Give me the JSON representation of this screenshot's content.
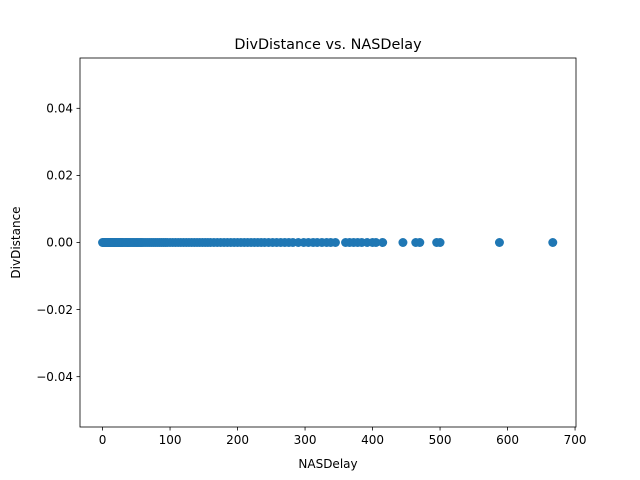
{
  "chart_data": {
    "type": "scatter",
    "title": "DivDistance vs. NASDelay",
    "xlabel": "NASDelay",
    "ylabel": "DivDistance",
    "xlim": [
      -33.4,
      701.4
    ],
    "ylim": [
      -0.055,
      0.055
    ],
    "xticks": [
      0,
      100,
      200,
      300,
      400,
      500,
      600,
      700
    ],
    "xtick_labels": [
      "0",
      "100",
      "200",
      "300",
      "400",
      "500",
      "600",
      "700"
    ],
    "yticks": [
      -0.04,
      -0.02,
      0.0,
      0.02,
      0.04
    ],
    "ytick_labels": [
      "−0.04",
      "−0.02",
      "0.00",
      "0.02",
      "0.04"
    ],
    "grid": false,
    "legend": "none",
    "point_color": "#1f77b4",
    "x": [
      0,
      1,
      2,
      3,
      4,
      5,
      6,
      7,
      8,
      9,
      10,
      11,
      12,
      13,
      14,
      15,
      16,
      17,
      18,
      19,
      20,
      21,
      22,
      23,
      24,
      25,
      26,
      27,
      28,
      29,
      30,
      32,
      34,
      36,
      38,
      40,
      42,
      44,
      46,
      48,
      50,
      52,
      54,
      56,
      58,
      60,
      63,
      66,
      69,
      72,
      75,
      78,
      81,
      84,
      87,
      90,
      93,
      96,
      100,
      104,
      108,
      112,
      116,
      120,
      124,
      128,
      132,
      136,
      140,
      144,
      148,
      152,
      156,
      160,
      165,
      170,
      175,
      180,
      185,
      190,
      195,
      200,
      205,
      210,
      215,
      220,
      225,
      230,
      235,
      240,
      246,
      252,
      258,
      264,
      270,
      276,
      282,
      290,
      298,
      305,
      312,
      318,
      325,
      332,
      338,
      345,
      360,
      366,
      372,
      378,
      384,
      392,
      400,
      405,
      415,
      445,
      464,
      470,
      495,
      500,
      588,
      667
    ],
    "y": [
      0,
      0,
      0,
      0,
      0,
      0,
      0,
      0,
      0,
      0,
      0,
      0,
      0,
      0,
      0,
      0,
      0,
      0,
      0,
      0,
      0,
      0,
      0,
      0,
      0,
      0,
      0,
      0,
      0,
      0,
      0,
      0,
      0,
      0,
      0,
      0,
      0,
      0,
      0,
      0,
      0,
      0,
      0,
      0,
      0,
      0,
      0,
      0,
      0,
      0,
      0,
      0,
      0,
      0,
      0,
      0,
      0,
      0,
      0,
      0,
      0,
      0,
      0,
      0,
      0,
      0,
      0,
      0,
      0,
      0,
      0,
      0,
      0,
      0,
      0,
      0,
      0,
      0,
      0,
      0,
      0,
      0,
      0,
      0,
      0,
      0,
      0,
      0,
      0,
      0,
      0,
      0,
      0,
      0,
      0,
      0,
      0,
      0,
      0,
      0,
      0,
      0,
      0,
      0,
      0,
      0,
      0,
      0,
      0,
      0,
      0,
      0,
      0,
      0,
      0,
      0,
      0,
      0,
      0,
      0,
      0,
      0
    ]
  }
}
